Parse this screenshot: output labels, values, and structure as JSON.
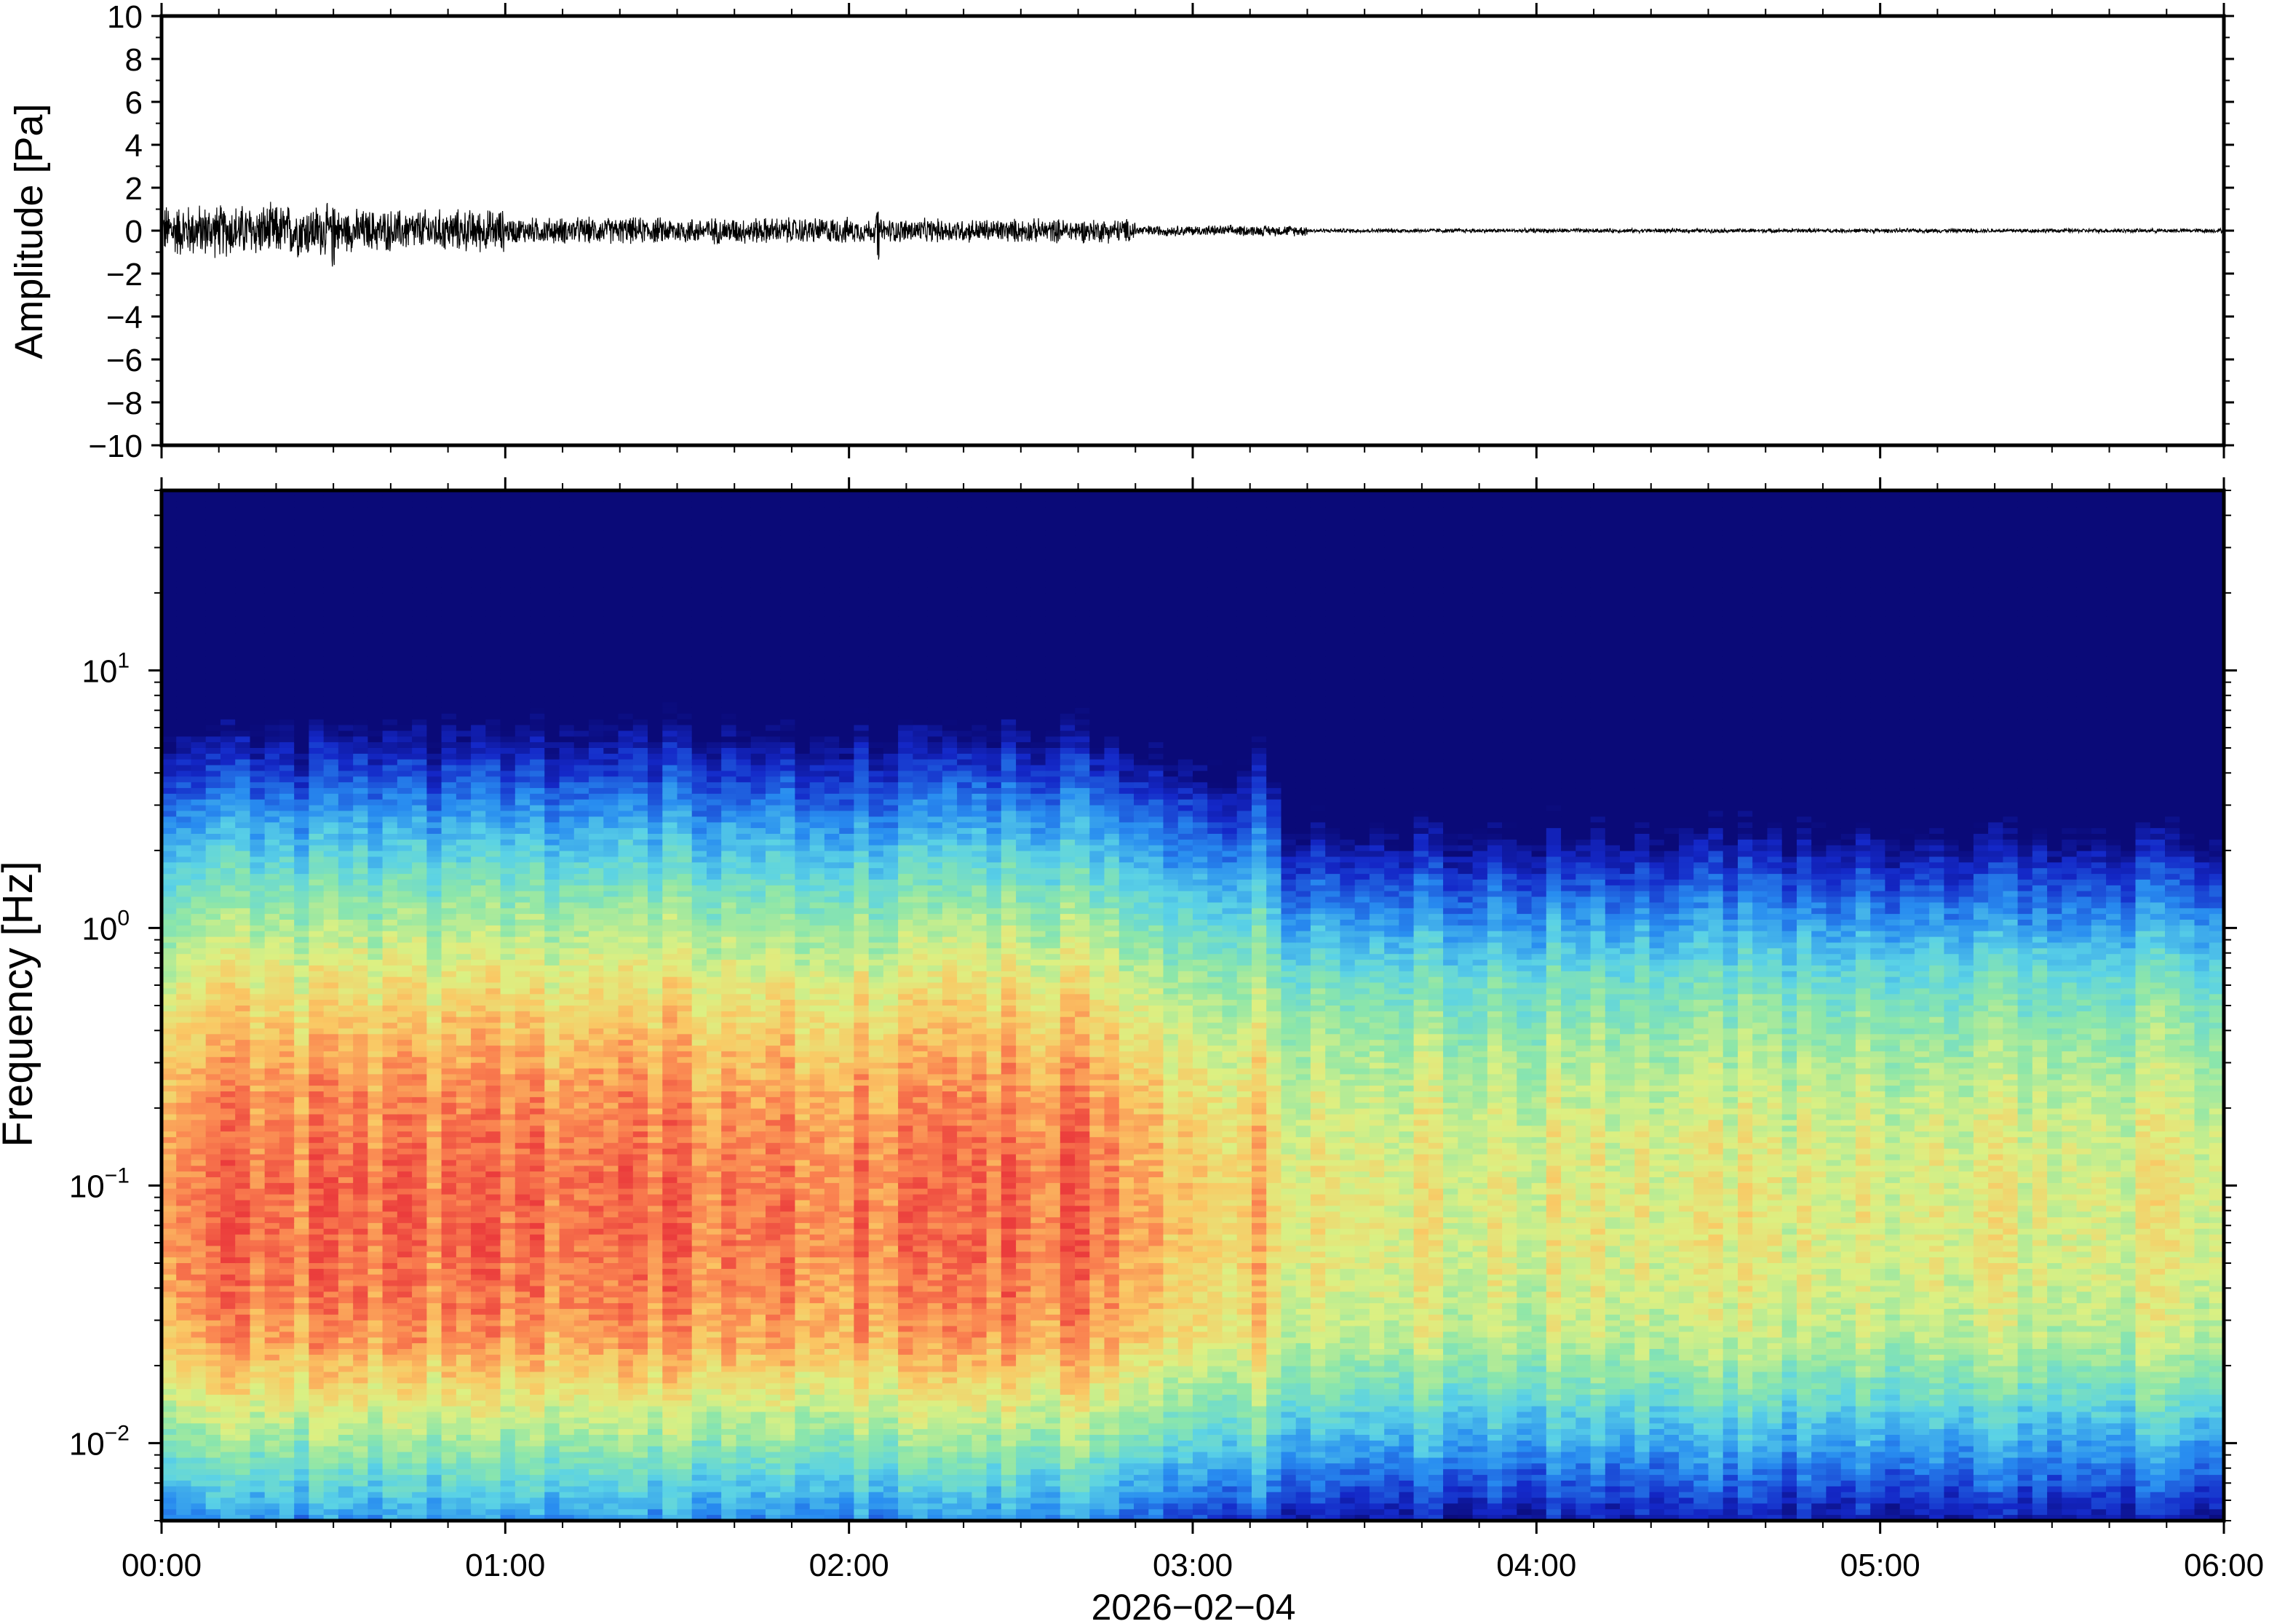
{
  "chart_data": [
    {
      "type": "line",
      "title": "",
      "ylabel": "Amplitude [Pa]",
      "ylim": [
        -10,
        10
      ],
      "y_ticks": [
        "10",
        "8",
        "6",
        "4",
        "2",
        "0",
        "−2",
        "−4",
        "−6",
        "−8",
        "−10"
      ],
      "x_range": [
        "2026-02-04 00:00",
        "2026-02-04 06:00"
      ],
      "series": [
        {
          "description_level": "envelope",
          "segments": [
            {
              "from": "00:00",
              "to": "00:30",
              "amplitude": 1.0
            },
            {
              "from": "00:30",
              "to": "01:00",
              "amplitude": 0.8
            },
            {
              "from": "01:00",
              "to": "02:00",
              "amplitude": 0.5
            },
            {
              "from": "02:00",
              "to": "02:50",
              "amplitude": 0.45
            },
            {
              "from": "02:50",
              "to": "03:20",
              "amplitude": 0.2
            },
            {
              "from": "03:20",
              "to": "06:00",
              "amplitude": 0.08
            }
          ],
          "peaks": [
            {
              "time": "00:30",
              "min": -1.8,
              "max": 1.2
            },
            {
              "time": "02:05",
              "min": -1.6,
              "max": 0.9
            }
          ]
        }
      ],
      "grid": false
    },
    {
      "type": "heatmap",
      "title": "",
      "ylabel": "Frequency [Hz]",
      "yscale": "log",
      "ylim": [
        0.005,
        50
      ],
      "y_ticks": [
        {
          "base": "10",
          "exp": "1"
        },
        {
          "base": "10",
          "exp": "0"
        },
        {
          "base": "10",
          "exp": "−1"
        },
        {
          "base": "10",
          "exp": "−2"
        }
      ],
      "colormap": "jet-like (dark blue low → red high)",
      "x_ticks": [
        "00:00",
        "01:00",
        "02:00",
        "03:00",
        "04:00",
        "05:00",
        "06:00"
      ],
      "xlabel": "2026−02−04",
      "description": "Power strongest (red/orange) around 0.05–0.15 Hz from 00:00 to 02:50, weaker (green/cyan) afterwards; high frequencies above ~10 Hz low power (dark blue).",
      "grid": false
    }
  ]
}
